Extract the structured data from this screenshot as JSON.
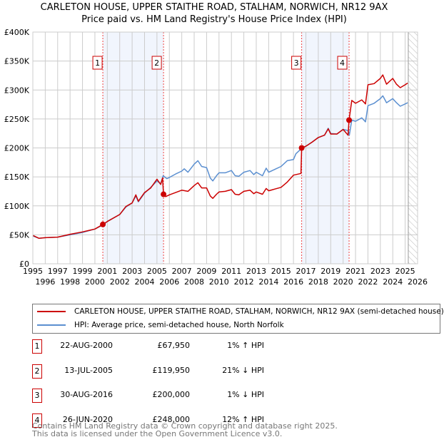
{
  "title_line1": "CARLETON HOUSE, UPPER STAITHE ROAD, STALHAM, NORWICH, NR12 9AX",
  "title_line2": "Price paid vs. HM Land Registry's House Price Index (HPI)",
  "chart_data": {
    "type": "line",
    "ylim": [
      0,
      400000
    ],
    "xlim": [
      1995,
      2026
    ],
    "yticks": [
      {
        "v": 0,
        "label": "£0"
      },
      {
        "v": 50000,
        "label": "£50K"
      },
      {
        "v": 100000,
        "label": "£100K"
      },
      {
        "v": 150000,
        "label": "£150K"
      },
      {
        "v": 200000,
        "label": "£200K"
      },
      {
        "v": 250000,
        "label": "£250K"
      },
      {
        "v": 300000,
        "label": "£300K"
      },
      {
        "v": 350000,
        "label": "£350K"
      },
      {
        "v": 400000,
        "label": "£400K"
      }
    ],
    "xticks": [
      "1995",
      "1996",
      "1997",
      "1998",
      "1999",
      "2000",
      "2001",
      "2002",
      "2003",
      "2004",
      "2005",
      "2006",
      "2007",
      "2008",
      "2009",
      "2010",
      "2011",
      "2012",
      "2013",
      "2014",
      "2015",
      "2016",
      "2017",
      "2018",
      "2019",
      "2020",
      "2021",
      "2022",
      "2023",
      "2024",
      "2025",
      "2026"
    ],
    "grid": true,
    "data_end": 2025.25,
    "series": [
      {
        "name": "CARLETON HOUSE, UPPER STAITHE ROAD, STALHAM, NORWICH, NR12 9AX (semi-detached house)",
        "color": "#cc0000",
        "x": [
          1995,
          1995.5,
          1996,
          1997,
          1998,
          1999,
          2000,
          2000.64,
          2001,
          2002,
          2002.5,
          2003,
          2003.3,
          2003.5,
          2004,
          2004.5,
          2005,
          2005.3,
          2005.45,
          2005.53,
          2005.7,
          2006,
          2006.5,
          2007,
          2007.5,
          2008,
          2008.3,
          2008.6,
          2009,
          2009.3,
          2009.5,
          2009.8,
          2010,
          2010.5,
          2011,
          2011.3,
          2011.6,
          2012,
          2012.5,
          2012.8,
          2013,
          2013.5,
          2013.8,
          2014,
          2014.5,
          2015,
          2015.5,
          2016,
          2016.6,
          2016.66,
          2017,
          2017.5,
          2018,
          2018.5,
          2018.8,
          2019,
          2019.5,
          2020,
          2020.4,
          2020.48,
          2020.7,
          2021,
          2021.5,
          2021.8,
          2022,
          2022.5,
          2023,
          2023.2,
          2023.5,
          2024,
          2024.3,
          2024.6,
          2025,
          2025.2
        ],
        "y": [
          49000,
          44000,
          45000,
          46000,
          51000,
          55000,
          60000,
          67950,
          73000,
          85000,
          99000,
          105000,
          119000,
          108000,
          123000,
          131000,
          146000,
          137000,
          148000,
          119950,
          116000,
          119000,
          123000,
          127000,
          125000,
          135000,
          140000,
          131000,
          131000,
          117000,
          113000,
          120000,
          124000,
          125000,
          128000,
          120000,
          119000,
          125000,
          127000,
          121000,
          124000,
          120000,
          130000,
          126000,
          129000,
          132000,
          141000,
          153000,
          156000,
          200000,
          203000,
          210000,
          218000,
          222000,
          233000,
          224000,
          224000,
          232000,
          222000,
          248000,
          282000,
          277000,
          283000,
          276000,
          309000,
          311000,
          320000,
          326000,
          310000,
          320000,
          310000,
          304000,
          309000,
          312000
        ]
      },
      {
        "name": "HPI: Average price, semi-detached house, North Norfolk",
        "color": "#5b8fd0",
        "x": [
          1995,
          1995.5,
          1996,
          1997,
          1998,
          1999,
          2000,
          2000.64,
          2001,
          2002,
          2002.5,
          2003,
          2003.3,
          2003.5,
          2004,
          2004.5,
          2005,
          2005.3,
          2005.5,
          2005.8,
          2006,
          2006.5,
          2007,
          2007.2,
          2007.5,
          2008,
          2008.3,
          2008.6,
          2009,
          2009.3,
          2009.5,
          2009.8,
          2010,
          2010.5,
          2011,
          2011.3,
          2011.6,
          2012,
          2012.5,
          2012.8,
          2013,
          2013.5,
          2013.8,
          2014,
          2014.5,
          2015,
          2015.5,
          2016,
          2016.2,
          2016.6,
          2017,
          2017.5,
          2018,
          2018.5,
          2018.8,
          2019,
          2019.5,
          2020,
          2020.4,
          2020.5,
          2020.7,
          2021,
          2021.5,
          2021.8,
          2022,
          2022.5,
          2023,
          2023.2,
          2023.5,
          2024,
          2024.3,
          2024.6,
          2025,
          2025.2
        ],
        "y": [
          48000,
          44000,
          45000,
          46000,
          50000,
          54000,
          60000,
          67000,
          73000,
          85000,
          98000,
          105000,
          117000,
          107000,
          122000,
          132000,
          143000,
          138000,
          152000,
          147000,
          149000,
          155000,
          160000,
          164000,
          158000,
          172000,
          178000,
          168000,
          166000,
          148000,
          143000,
          152000,
          157000,
          157000,
          161000,
          152000,
          151000,
          158000,
          161000,
          154000,
          158000,
          152000,
          165000,
          158000,
          163000,
          168000,
          178000,
          180000,
          190000,
          198000,
          203000,
          210000,
          218000,
          222000,
          234000,
          225000,
          224000,
          232000,
          230000,
          222000,
          248000,
          246000,
          252000,
          245000,
          273000,
          277000,
          285000,
          290000,
          278000,
          285000,
          278000,
          272000,
          276000,
          278000
        ]
      }
    ],
    "sales": [
      {
        "n": "1",
        "x": 2000.64,
        "y": 67950
      },
      {
        "n": "2",
        "x": 2005.53,
        "y": 119950
      },
      {
        "n": "3",
        "x": 2016.66,
        "y": 200000
      },
      {
        "n": "4",
        "x": 2020.48,
        "y": 248000
      }
    ]
  },
  "legend": {
    "red_label": "CARLETON HOUSE, UPPER STAITHE ROAD, STALHAM, NORWICH, NR12 9AX (semi-detached house)",
    "blue_label": "HPI: Average price, semi-detached house, North Norfolk"
  },
  "transactions": [
    {
      "n": "1",
      "date": "22-AUG-2000",
      "price": "£67,950",
      "hpi": "1% ↑ HPI"
    },
    {
      "n": "2",
      "date": "13-JUL-2005",
      "price": "£119,950",
      "hpi": "21% ↓ HPI"
    },
    {
      "n": "3",
      "date": "30-AUG-2016",
      "price": "£200,000",
      "hpi": "1% ↓ HPI"
    },
    {
      "n": "4",
      "date": "26-JUN-2020",
      "price": "£248,000",
      "hpi": "12% ↑ HPI"
    }
  ],
  "footer_line1": "Contains HM Land Registry data © Crown copyright and database right 2025.",
  "footer_line2": "This data is licensed under the Open Government Licence v3.0."
}
